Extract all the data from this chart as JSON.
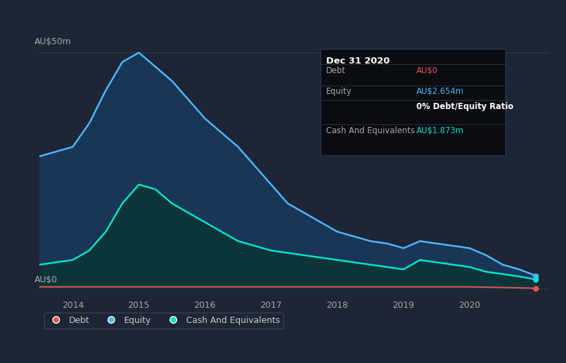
{
  "bg_color": "#1e2535",
  "plot_bg_color": "#1e2535",
  "grid_color": "#2e3a50",
  "title_box_bg": "#0a0c10",
  "title_box_border": "#2e3a50",
  "tooltip_title": "Dec 31 2020",
  "tooltip_rows": [
    {
      "label": "Debt",
      "value": "AU$0",
      "value_color": "#e05555"
    },
    {
      "label": "Equity",
      "value": "AU$2.654m",
      "value_color": "#4db8ff"
    },
    {
      "label": "",
      "value": "0% Debt/Equity Ratio",
      "value_color": "#ffffff"
    },
    {
      "label": "Cash And Equivalents",
      "value": "AU$1.873m",
      "value_color": "#00e5cc"
    }
  ],
  "ylabel_top": "AU$50m",
  "ylabel_bottom": "AU$0",
  "x_ticks": [
    2014,
    2015,
    2016,
    2017,
    2018,
    2019,
    2020
  ],
  "x_min": 2013.5,
  "x_max": 2021.2,
  "y_min": -2,
  "y_max": 55,
  "equity_color": "#4db8ff",
  "equity_fill_color": "#1a3a5c",
  "cash_color": "#00e5cc",
  "cash_fill_color": "#0a3535",
  "debt_color": "#e05555",
  "legend_bg": "#1e2535",
  "legend_border": "#3a4a60",
  "equity_x": [
    2013.5,
    2014.0,
    2014.25,
    2014.5,
    2014.75,
    2015.0,
    2015.25,
    2015.5,
    2015.75,
    2016.0,
    2016.25,
    2016.5,
    2016.75,
    2017.0,
    2017.25,
    2017.5,
    2017.75,
    2018.0,
    2018.25,
    2018.5,
    2018.75,
    2019.0,
    2019.25,
    2019.5,
    2019.75,
    2020.0,
    2020.25,
    2020.5,
    2020.75,
    2021.0
  ],
  "equity_y": [
    28,
    30,
    35,
    42,
    48,
    50,
    47,
    44,
    40,
    36,
    33,
    30,
    26,
    22,
    18,
    16,
    14,
    12,
    11,
    10,
    9.5,
    8.5,
    10,
    9.5,
    9,
    8.5,
    7,
    5,
    4,
    2.654
  ],
  "cash_x": [
    2013.5,
    2014.0,
    2014.25,
    2014.5,
    2014.75,
    2015.0,
    2015.25,
    2015.5,
    2015.75,
    2016.0,
    2016.25,
    2016.5,
    2016.75,
    2017.0,
    2017.25,
    2017.5,
    2017.75,
    2018.0,
    2018.25,
    2018.5,
    2018.75,
    2019.0,
    2019.25,
    2019.5,
    2019.75,
    2020.0,
    2020.25,
    2020.5,
    2020.75,
    2021.0
  ],
  "cash_y": [
    5,
    6,
    8,
    12,
    18,
    22,
    21,
    18,
    16,
    14,
    12,
    10,
    9,
    8,
    7.5,
    7,
    6.5,
    6,
    5.5,
    5,
    4.5,
    4,
    6,
    5.5,
    5,
    4.5,
    3.5,
    3,
    2.5,
    1.873
  ],
  "debt_x": [
    2013.5,
    2014.0,
    2015.0,
    2016.0,
    2017.0,
    2018.0,
    2019.0,
    2020.0,
    2021.0
  ],
  "debt_y": [
    0.3,
    0.3,
    0.3,
    0.3,
    0.3,
    0.3,
    0.3,
    0.3,
    0.0
  ]
}
